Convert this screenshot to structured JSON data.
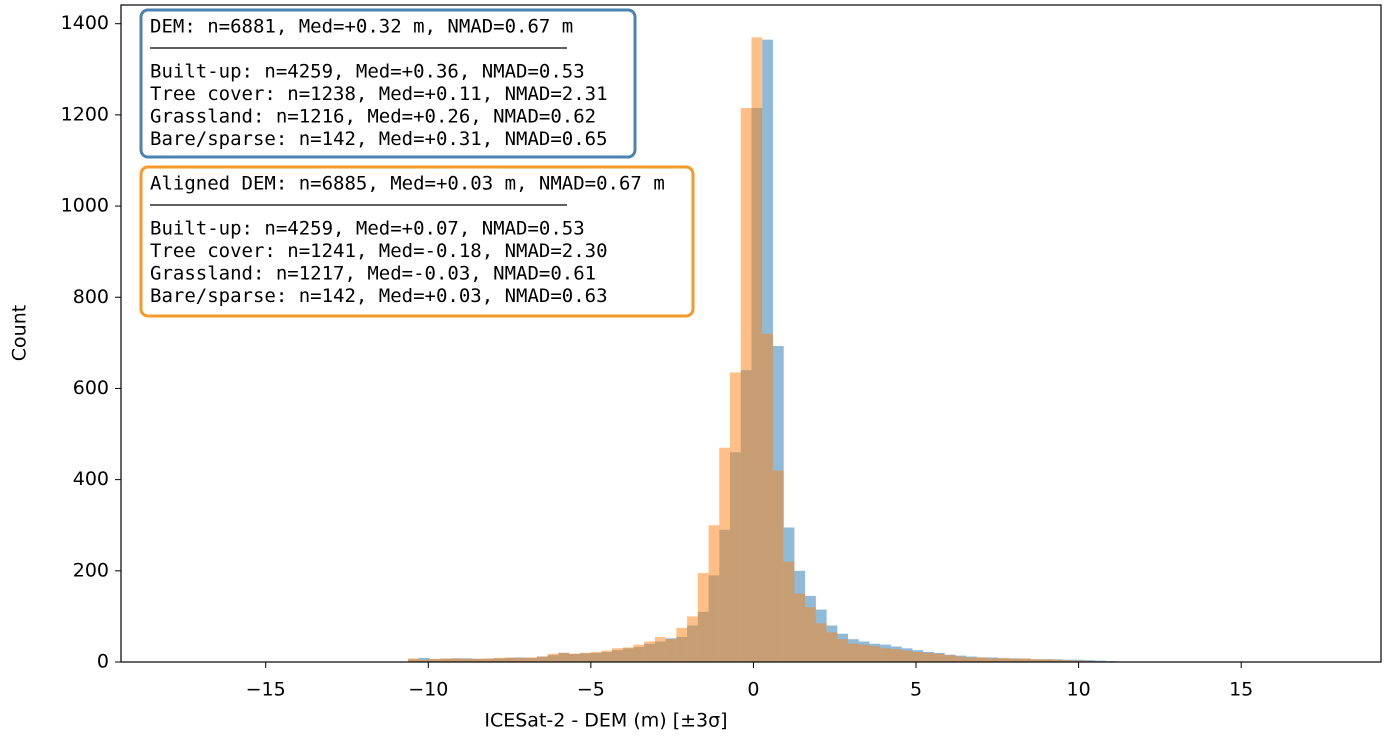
{
  "chart_data": {
    "type": "histogram",
    "x_label": "ICESat-2 - DEM (m) [±3σ]",
    "y_label": "Count",
    "bins": [
      -10.62,
      -10.29,
      -9.96,
      -9.63,
      -9.3,
      -8.97,
      -8.64,
      -8.31,
      -7.98,
      -7.65,
      -7.32,
      -6.99,
      -6.66,
      -6.33,
      -6,
      -5.67,
      -5.34,
      -5.01,
      -4.68,
      -4.35,
      -4.02,
      -3.69,
      -3.36,
      -3.03,
      -2.7,
      -2.37,
      -2.04,
      -1.71,
      -1.38,
      -1.05,
      -0.72,
      -0.39,
      -0.06,
      0.27,
      0.6,
      0.93,
      1.26,
      1.59,
      1.92,
      2.25,
      2.58,
      2.91,
      3.24,
      3.57,
      3.9,
      4.23,
      4.56,
      4.89,
      5.22,
      5.55,
      5.88,
      6.21,
      6.54,
      6.87,
      7.2,
      7.53,
      7.86,
      8.19,
      8.52,
      8.85,
      9.18,
      9.51,
      9.84,
      10.17,
      10.5,
      10.83,
      11.16
    ],
    "series": [
      {
        "color": "#1f77b4",
        "values": [
          6,
          9,
          6,
          7,
          8,
          8,
          7,
          7,
          8,
          9,
          10,
          9,
          12,
          15,
          20,
          18,
          19,
          20,
          22,
          26,
          30,
          33,
          40,
          45,
          52,
          55,
          80,
          110,
          190,
          290,
          460,
          640,
          1215,
          1365,
          693,
          295,
          200,
          145,
          115,
          80,
          62,
          50,
          45,
          40,
          38,
          34,
          30,
          26,
          22,
          20,
          16,
          14,
          12,
          10,
          10,
          8,
          8,
          7,
          6,
          6,
          6,
          5,
          5,
          4,
          3,
          2
        ]
      },
      {
        "color": "#ff7f0e",
        "values": [
          8,
          5,
          7,
          8,
          8,
          7,
          7,
          8,
          9,
          10,
          9,
          10,
          12,
          18,
          20,
          18,
          20,
          22,
          25,
          30,
          32,
          38,
          45,
          55,
          50,
          75,
          100,
          195,
          300,
          470,
          635,
          1215,
          1370,
          720,
          420,
          220,
          150,
          120,
          85,
          65,
          50,
          40,
          38,
          35,
          30,
          28,
          25,
          22,
          20,
          18,
          15,
          12,
          10,
          10,
          8,
          9,
          7,
          8,
          6,
          6,
          5,
          4,
          3,
          2,
          1,
          0
        ]
      }
    ],
    "opacity": 0.5,
    "xlim": [
      -19.45,
      19.3
    ],
    "ylim": [
      0,
      1441
    ],
    "xticks": [
      {
        "value": -15,
        "label": "−15"
      },
      {
        "value": -10,
        "label": "−10"
      },
      {
        "value": -5,
        "label": "−5"
      },
      0,
      5,
      10,
      15
    ],
    "yticks": [
      0,
      200,
      400,
      600,
      800,
      1000,
      1200,
      1400
    ],
    "grid": false,
    "annotation_boxes": [
      {
        "color": "#4a82b4",
        "lines": [
          "DEM: n=6881, Med=+0.32 m, NMAD=0.67 m",
          "Built-up: n=4259, Med=+0.36, NMAD=0.53",
          "Tree cover: n=1238, Med=+0.11, NMAD=2.31",
          "Grassland: n=1216, Med=+0.26, NMAD=0.62",
          "Bare/sparse: n=142, Med=+0.31, NMAD=0.65"
        ]
      },
      {
        "color": "#f39a2a",
        "lines": [
          "Aligned DEM: n=6885, Med=+0.03 m, NMAD=0.67 m",
          "Built-up: n=4259, Med=+0.07, NMAD=0.53",
          "Tree cover: n=1241, Med=-0.18, NMAD=2.30",
          "Grassland: n=1217, Med=-0.03, NMAD=0.61",
          "Bare/sparse: n=142, Med=+0.03, NMAD=0.63"
        ]
      }
    ]
  }
}
